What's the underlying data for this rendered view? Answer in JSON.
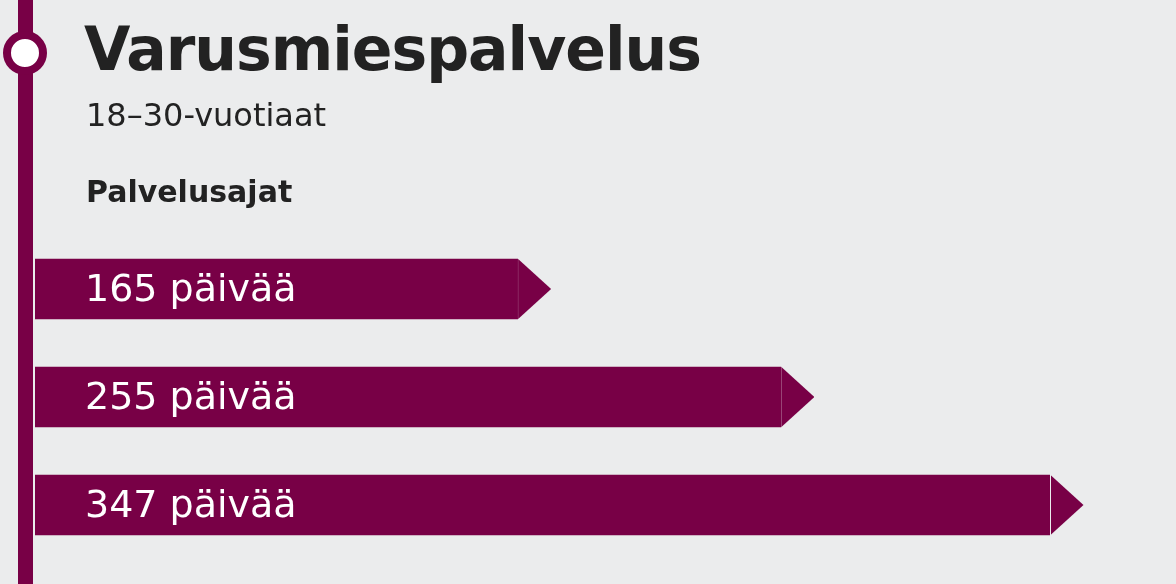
{
  "chart_data": {
    "type": "bar",
    "orientation": "horizontal",
    "title": "Varusmiespalvelus",
    "subtitle": "18–30-vuotiaat",
    "annotations": [
      "Palvelusajat"
    ],
    "categories": [
      null,
      null,
      null
    ],
    "values": [
      165,
      255,
      347
    ],
    "value_labels": [
      "165 päivää",
      "255 päivää",
      "347 päivää"
    ],
    "color": "#780046"
  }
}
